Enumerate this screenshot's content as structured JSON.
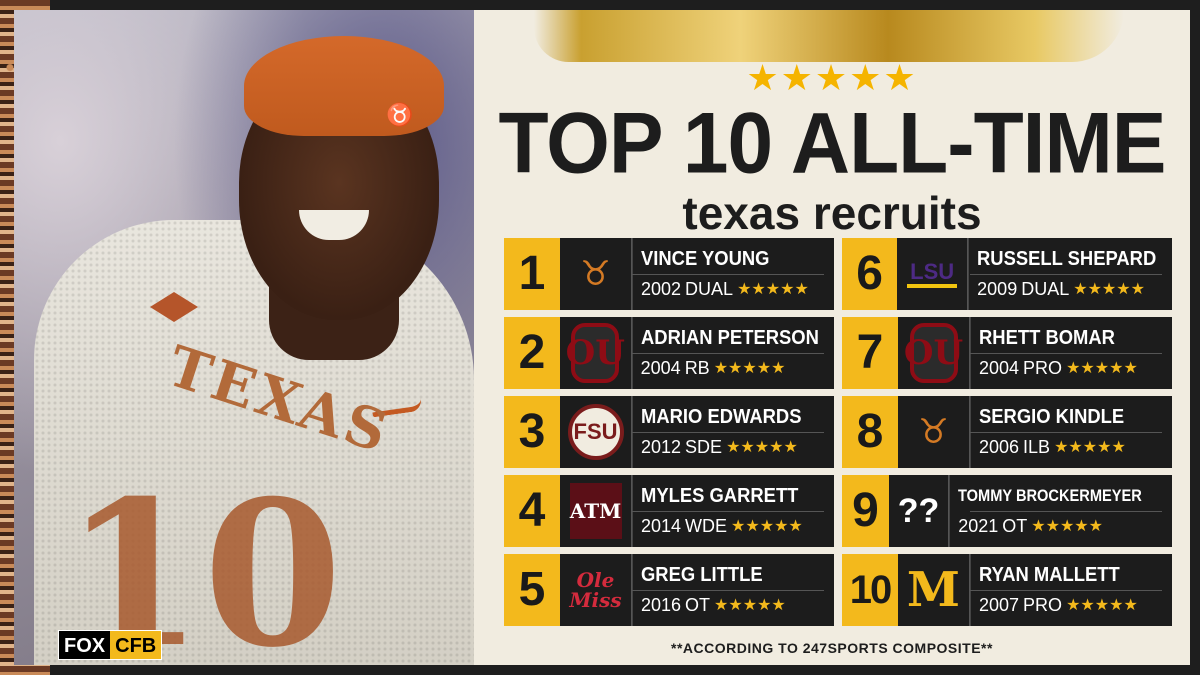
{
  "graphic": {
    "title": "TOP 10 ALL-TIME",
    "subtitle": "texas recruits",
    "stars_header": "★★★★★",
    "footnote": "**ACCORDING TO 247SPORTS COMPOSITE**",
    "accent_color": "#f3b91c"
  },
  "photo": {
    "jersey_text": "TEXAS",
    "jersey_number": "10"
  },
  "brand": {
    "fox": "FOX",
    "cfb": "CFB"
  },
  "recruits": [
    {
      "rank": "1",
      "name": "VINCE YOUNG",
      "year": "2002",
      "position": "DUAL",
      "stars": "★★★★★",
      "logo": "texas-longhorn-icon"
    },
    {
      "rank": "2",
      "name": "ADRIAN PETERSON",
      "year": "2004",
      "position": "RB",
      "stars": "★★★★★",
      "logo": "oklahoma-ou-icon"
    },
    {
      "rank": "3",
      "name": "MARIO EDWARDS",
      "year": "2012",
      "position": "SDE",
      "stars": "★★★★★",
      "logo": "florida-state-seminole-icon"
    },
    {
      "rank": "4",
      "name": "MYLES GARRETT",
      "year": "2014",
      "position": "WDE",
      "stars": "★★★★★",
      "logo": "texas-am-icon"
    },
    {
      "rank": "5",
      "name": "GREG LITTLE",
      "year": "2016",
      "position": "OT",
      "stars": "★★★★★",
      "logo": "ole-miss-icon"
    },
    {
      "rank": "6",
      "name": "RUSSELL SHEPARD",
      "year": "2009",
      "position": "DUAL",
      "stars": "★★★★★",
      "logo": "lsu-icon"
    },
    {
      "rank": "7",
      "name": "RHETT BOMAR",
      "year": "2004",
      "position": "PRO",
      "stars": "★★★★★",
      "logo": "oklahoma-ou-icon"
    },
    {
      "rank": "8",
      "name": "SERGIO KINDLE",
      "year": "2006",
      "position": "ILB",
      "stars": "★★★★★",
      "logo": "texas-longhorn-icon"
    },
    {
      "rank": "9",
      "name": "TOMMY BROCKERMEYER",
      "year": "2021",
      "position": "OT",
      "stars": "★★★★★",
      "logo": "question-marks-icon"
    },
    {
      "rank": "10",
      "name": "RYAN MALLETT",
      "year": "2007",
      "position": "PRO",
      "stars": "★★★★★",
      "logo": "michigan-block-m-icon"
    }
  ],
  "logo_text": {
    "ou": "OU",
    "fsu": "FSU",
    "atm": "ATM",
    "ole_miss": "Ole Miss",
    "lsu": "LSU",
    "qq": "??",
    "michigan": "M",
    "longhorn": "♉"
  }
}
